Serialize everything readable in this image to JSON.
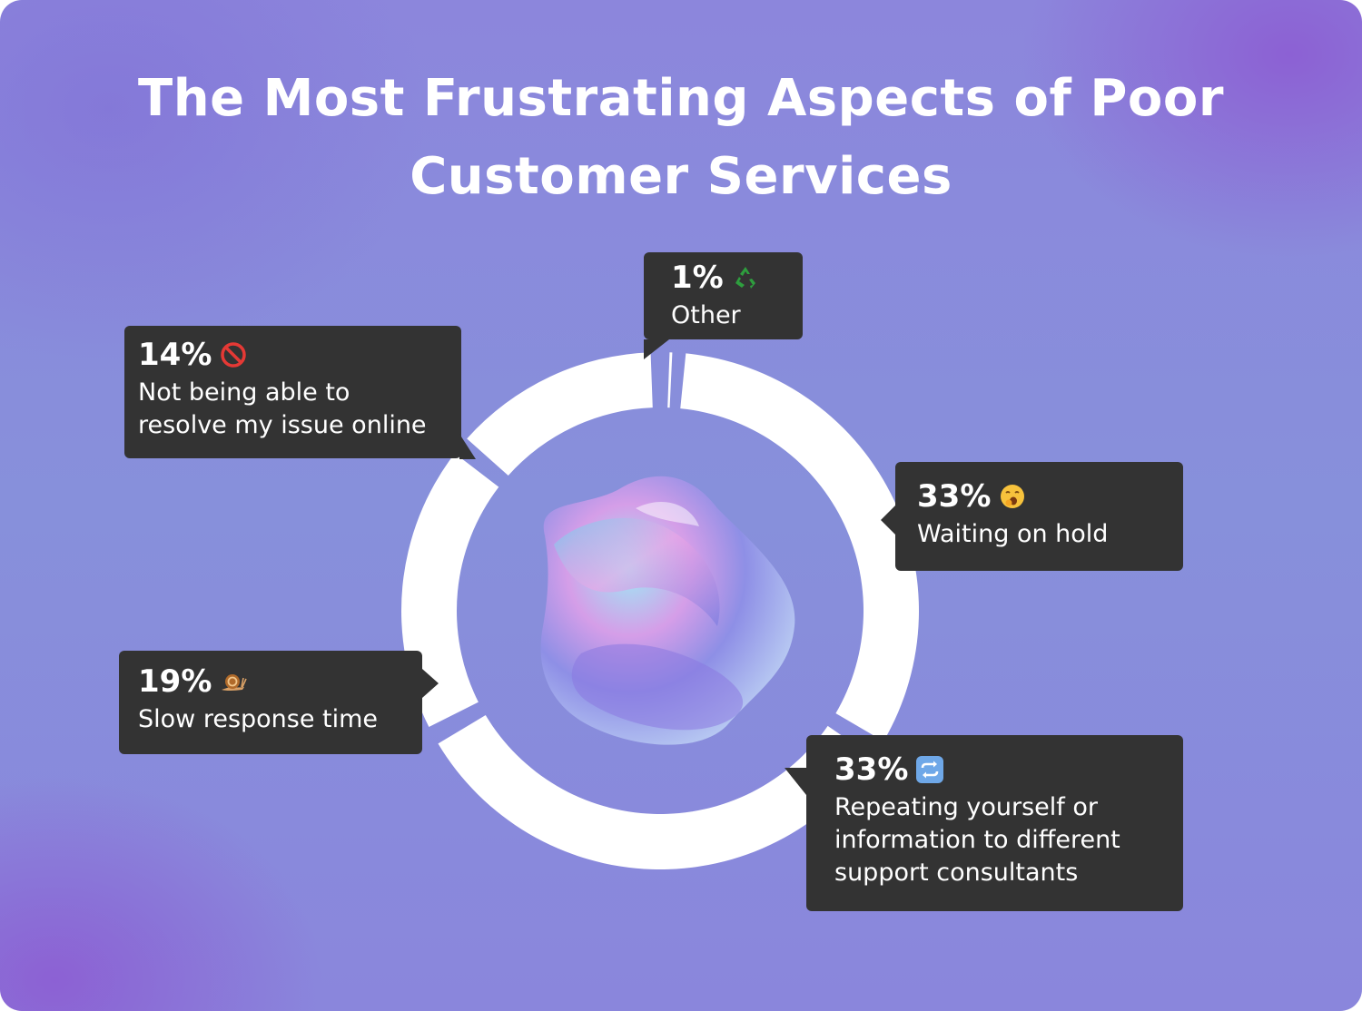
{
  "title": {
    "line1": "The Most Frustrating Aspects of Poor",
    "line2": "Customer Services"
  },
  "chart_data": {
    "type": "pie",
    "title": "The Most Frustrating Aspects of Poor Customer Services",
    "slices": [
      {
        "label": "Other",
        "value": 1,
        "value_label": "1%",
        "icon": "recycle-icon"
      },
      {
        "label": "Waiting on hold",
        "value": 33,
        "value_label": "33%",
        "icon": "yawning-face-icon"
      },
      {
        "label": "Repeating yourself or information to different support consultants",
        "value": 33,
        "value_label": "33%",
        "icon": "repeat-arrows-icon"
      },
      {
        "label": "Slow response time",
        "value": 19,
        "value_label": "19%",
        "icon": "snail-icon"
      },
      {
        "label": "Not being able to resolve my issue online",
        "value": 14,
        "value_label": "14%",
        "icon": "prohibited-icon"
      }
    ],
    "labels_display": {
      "other": [
        "Other"
      ],
      "hold": [
        "Waiting on hold"
      ],
      "repeat": [
        "Repeating yourself or",
        "information to different",
        "support consultants"
      ],
      "slow": [
        "Slow response time"
      ],
      "online": [
        "Not being able to",
        "resolve my issue online"
      ]
    },
    "style": "donut",
    "ring_color": "#ffffff",
    "callout_color": "#333333",
    "center_decoration": "iridescent-blob"
  }
}
